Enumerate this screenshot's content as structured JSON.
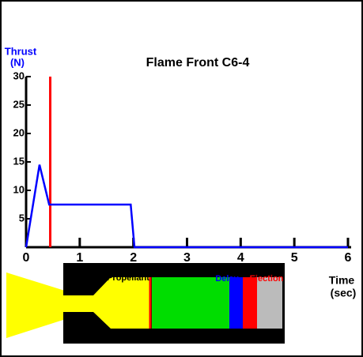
{
  "chart_data": {
    "type": "line",
    "title": "Flame Front C6-4",
    "y_label": [
      "Thrust",
      "(N)"
    ],
    "x_label": [
      "Time",
      "(sec)"
    ],
    "series": [
      {
        "name": "Thrust",
        "color": "#0000ff",
        "x": [
          0,
          0.25,
          0.43,
          1.95,
          2.02,
          6
        ],
        "values": [
          0,
          14.5,
          7.5,
          7.5,
          0,
          0
        ]
      }
    ],
    "marker_x": 0.45,
    "marker_color": "#ff0000",
    "xlim": [
      0,
      6
    ],
    "xticks": [
      0,
      1,
      2,
      3,
      4,
      5,
      6
    ],
    "ylim": [
      0,
      30
    ],
    "yticks": [
      5,
      10,
      15,
      20,
      25,
      30
    ]
  },
  "diagram": {
    "propellant": "Propellant",
    "delay": "Delay",
    "ejection": "Ejection"
  }
}
